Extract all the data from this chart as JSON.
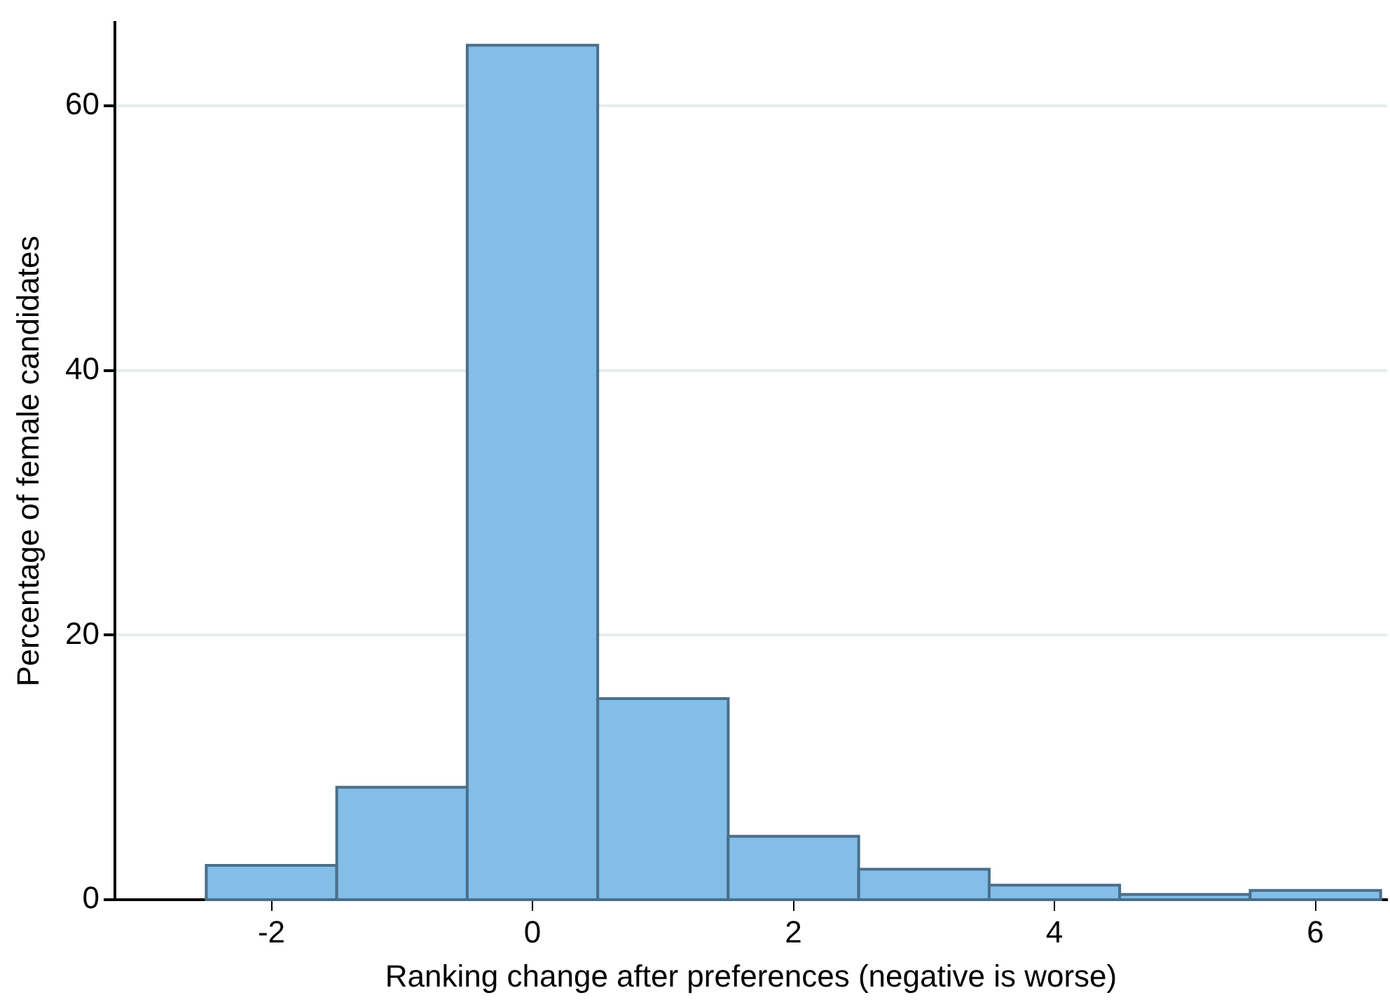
{
  "chart_data": {
    "type": "histogram",
    "xlabel": "Ranking change after preferences (negative is worse)",
    "ylabel": "Percentage of female candidates",
    "bins": [
      -2.5,
      -1.5,
      -0.5,
      0.5,
      1.5,
      2.5,
      3.5,
      4.5,
      5.5,
      6.5
    ],
    "values": [
      2.6,
      8.5,
      64.6,
      15.2,
      4.8,
      2.3,
      1.1,
      0.4,
      0.7
    ],
    "color": "#82bee8",
    "xlim": [
      -3.2,
      6.55
    ],
    "xticks": [
      -2,
      0,
      2,
      4,
      6
    ],
    "ylim": [
      0,
      66.3
    ],
    "yticks": [
      0,
      20,
      40,
      60
    ],
    "grid": "y"
  }
}
